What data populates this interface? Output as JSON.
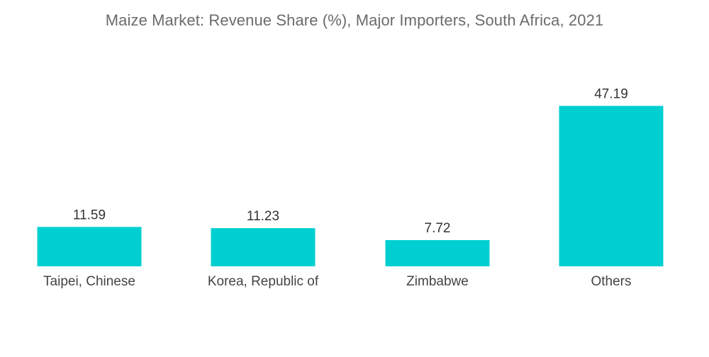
{
  "chart_data": {
    "type": "bar",
    "title": "Maize Market: Revenue Share (%), Major Importers, South Africa, 2021",
    "categories": [
      "Taipei, Chinese",
      "Korea, Republic of",
      "Zimbabwe",
      "Others"
    ],
    "values": [
      11.59,
      11.23,
      7.72,
      47.19
    ],
    "value_labels": [
      "11.59",
      "11.23",
      "7.72",
      "47.19"
    ],
    "xlabel": "",
    "ylabel": "",
    "ylim": [
      0,
      50
    ],
    "grid": false,
    "legend": "none",
    "bar_color": "#00cfd1"
  }
}
